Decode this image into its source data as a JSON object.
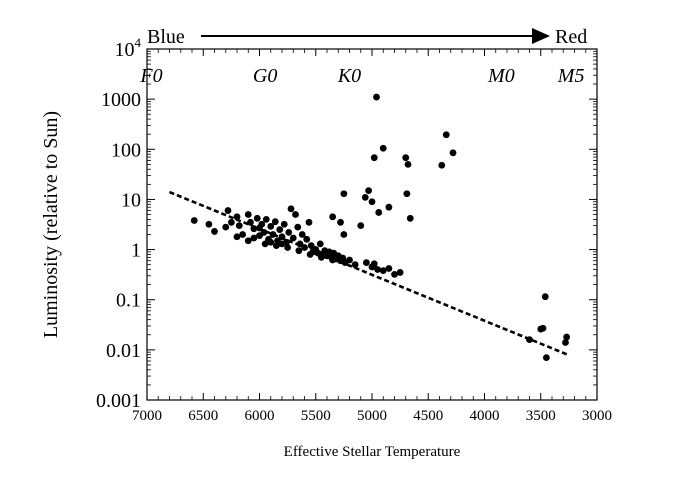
{
  "chart_data": {
    "type": "scatter",
    "title": "",
    "xlabel": "Effective Stellar Temperature",
    "ylabel": "Luminosity (relative to Sun)",
    "xlim": [
      7000,
      3000
    ],
    "x_reversed": true,
    "ylim": [
      0.001,
      10000
    ],
    "y_scale": "log",
    "x_ticks": [
      "7000",
      "6500",
      "6000",
      "5500",
      "5000",
      "4500",
      "4000",
      "3500",
      "3000"
    ],
    "x_tick_values": [
      7000,
      6500,
      6000,
      5500,
      5000,
      4500,
      4000,
      3500,
      3000
    ],
    "y_ticks": [
      "0.001",
      "0.01",
      "0.1",
      "1",
      "10",
      "100",
      "1000"
    ],
    "y_tick_values": [
      0.001,
      0.01,
      0.1,
      1,
      10,
      100,
      1000
    ],
    "y_top_label": {
      "base": "10",
      "exp": "4"
    },
    "grid": false,
    "color_arrow": {
      "left_label": "Blue",
      "right_label": "Red"
    },
    "spectral_classes": [
      {
        "label": "F0",
        "temperature": 6960
      },
      {
        "label": "G0",
        "temperature": 5950
      },
      {
        "label": "K0",
        "temperature": 5200
      },
      {
        "label": "M0",
        "temperature": 3850
      },
      {
        "label": "M5",
        "temperature": 3230
      }
    ],
    "trend_line": {
      "style": "dashed",
      "points": [
        [
          6800,
          14
        ],
        [
          3260,
          0.008
        ]
      ]
    },
    "series": [
      {
        "marker": "filled-circle",
        "color": "#000000",
        "points": [
          [
            6580,
            3.8
          ],
          [
            6450,
            3.2
          ],
          [
            6400,
            2.3
          ],
          [
            6300,
            2.8
          ],
          [
            6280,
            6.0
          ],
          [
            6250,
            3.5
          ],
          [
            6200,
            4.5
          ],
          [
            6180,
            3.0
          ],
          [
            6150,
            2.0
          ],
          [
            6100,
            5.0
          ],
          [
            6080,
            3.5
          ],
          [
            6050,
            2.6
          ],
          [
            6020,
            4.2
          ],
          [
            6000,
            1.9
          ],
          [
            5980,
            3.2
          ],
          [
            5960,
            2.2
          ],
          [
            5940,
            4.0
          ],
          [
            5920,
            1.6
          ],
          [
            5900,
            2.9
          ],
          [
            5880,
            2.0
          ],
          [
            5860,
            3.6
          ],
          [
            5840,
            1.5
          ],
          [
            5820,
            2.5
          ],
          [
            5800,
            1.8
          ],
          [
            5780,
            3.2
          ],
          [
            5760,
            1.4
          ],
          [
            5740,
            2.2
          ],
          [
            5720,
            6.5
          ],
          [
            5700,
            1.7
          ],
          [
            5680,
            5.0
          ],
          [
            5660,
            2.8
          ],
          [
            5640,
            1.3
          ],
          [
            5620,
            2.0
          ],
          [
            5600,
            1.1
          ],
          [
            5580,
            1.6
          ],
          [
            5560,
            3.5
          ],
          [
            5540,
            1.2
          ],
          [
            5520,
            0.9
          ],
          [
            5500,
            1.0
          ],
          [
            5480,
            0.85
          ],
          [
            5460,
            1.3
          ],
          [
            5440,
            0.8
          ],
          [
            5420,
            0.95
          ],
          [
            5400,
            0.75
          ],
          [
            5380,
            0.9
          ],
          [
            5360,
            0.7
          ],
          [
            5340,
            0.85
          ],
          [
            5320,
            0.65
          ],
          [
            5300,
            0.75
          ],
          [
            5280,
            0.6
          ],
          [
            5260,
            0.68
          ],
          [
            5240,
            0.55
          ],
          [
            5200,
            0.62
          ],
          [
            5150,
            0.5
          ],
          [
            5050,
            0.55
          ],
          [
            5000,
            0.45
          ],
          [
            4980,
            0.52
          ],
          [
            4950,
            0.4
          ],
          [
            4900,
            0.38
          ],
          [
            4850,
            0.42
          ],
          [
            4800,
            0.32
          ],
          [
            4750,
            0.35
          ],
          [
            6100,
            1.5
          ],
          [
            6000,
            2.7
          ],
          [
            5950,
            1.3
          ],
          [
            5850,
            1.2
          ],
          [
            5750,
            1.1
          ],
          [
            5650,
            0.95
          ],
          [
            5550,
            0.8
          ],
          [
            5450,
            0.7
          ],
          [
            5350,
            0.62
          ],
          [
            6200,
            1.8
          ],
          [
            6050,
            1.7
          ],
          [
            5900,
            1.4
          ],
          [
            5800,
            1.3
          ],
          [
            5250,
            13
          ],
          [
            5060,
            11
          ],
          [
            5030,
            15
          ],
          [
            5000,
            9
          ],
          [
            4980,
            68
          ],
          [
            4960,
            1100
          ],
          [
            4940,
            5.5
          ],
          [
            4900,
            105
          ],
          [
            4850,
            7
          ],
          [
            4700,
            68
          ],
          [
            4690,
            13
          ],
          [
            4680,
            50
          ],
          [
            4660,
            4.2
          ],
          [
            4380,
            48
          ],
          [
            4340,
            195
          ],
          [
            4280,
            85
          ],
          [
            5280,
            3.5
          ],
          [
            5350,
            4.5
          ],
          [
            5250,
            2.0
          ],
          [
            5100,
            3.0
          ],
          [
            3600,
            0.016
          ],
          [
            3500,
            0.026
          ],
          [
            3480,
            0.027
          ],
          [
            3460,
            0.115
          ],
          [
            3450,
            0.007
          ],
          [
            3280,
            0.014
          ],
          [
            3270,
            0.018
          ]
        ]
      }
    ]
  }
}
